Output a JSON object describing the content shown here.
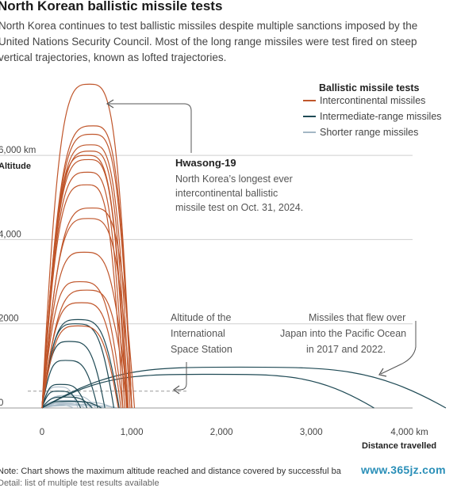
{
  "header": {
    "title": "North Korean ballistic missile tests",
    "subtitle_lines": [
      "North Korea continues to test ballistic missiles despite multiple sanctions imposed by the",
      "United Nations Security Council. Most of the long range missiles were test fired on steep",
      "vertical trajectories, known as lofted trajectories."
    ]
  },
  "chart_data": {
    "type": "line",
    "legend": {
      "title": "Ballistic missile tests",
      "placement": "top-right",
      "items": [
        {
          "label": "Intercontinental missiles",
          "color": "#c0562b"
        },
        {
          "label": "Intermediate-range missiles",
          "color": "#1f4a55"
        },
        {
          "label": "Shorter range missiles",
          "color": "#a3b7c5"
        }
      ]
    },
    "y_ticks": [
      "6,000 km",
      "4,000",
      "2000",
      "0"
    ],
    "y_label": "Altitude",
    "x_ticks": [
      "0",
      "1,000",
      "2,000",
      "3,000",
      "4,000 km"
    ],
    "x_label": "Distance travelled",
    "xlim": [
      0,
      4700
    ],
    "ylim": [
      0,
      7800
    ],
    "grid": true,
    "series": [
      {
        "kind": "icbm",
        "peak_x": 530,
        "range": 1000,
        "apogee": 7690
      },
      {
        "kind": "icbm",
        "peak_x": 570,
        "range": 1000,
        "apogee": 6700
      },
      {
        "kind": "icbm",
        "peak_x": 560,
        "range": 1000,
        "apogee": 6500
      },
      {
        "kind": "icbm",
        "peak_x": 545,
        "range": 980,
        "apogee": 6250
      },
      {
        "kind": "icbm",
        "peak_x": 540,
        "range": 960,
        "apogee": 6100
      },
      {
        "kind": "icbm",
        "peak_x": 500,
        "range": 950,
        "apogee": 6000
      },
      {
        "kind": "icbm",
        "peak_x": 520,
        "range": 940,
        "apogee": 5900
      },
      {
        "kind": "icbm",
        "peak_x": 510,
        "range": 920,
        "apogee": 5600
      },
      {
        "kind": "icbm",
        "peak_x": 500,
        "range": 900,
        "apogee": 5300
      },
      {
        "kind": "icbm",
        "peak_x": 560,
        "range": 1030,
        "apogee": 4750
      },
      {
        "kind": "icbm",
        "peak_x": 520,
        "range": 1000,
        "apogee": 4500
      },
      {
        "kind": "icbm",
        "peak_x": 470,
        "range": 960,
        "apogee": 3700
      },
      {
        "kind": "icbm",
        "peak_x": 420,
        "range": 900,
        "apogee": 3000
      },
      {
        "kind": "icbm",
        "peak_x": 500,
        "range": 950,
        "apogee": 2800
      },
      {
        "kind": "icbm",
        "peak_x": 440,
        "range": 880,
        "apogee": 2500
      },
      {
        "kind": "icbm",
        "peak_x": 400,
        "range": 850,
        "apogee": 1950
      },
      {
        "kind": "irbm",
        "peak_x": 400,
        "range": 860,
        "apogee": 2100
      },
      {
        "kind": "irbm",
        "peak_x": 370,
        "range": 800,
        "apogee": 2000
      },
      {
        "kind": "irbm",
        "peak_x": 300,
        "range": 700,
        "apogee": 1580
      },
      {
        "kind": "irbm",
        "peak_x": 260,
        "range": 620,
        "apogee": 1130
      },
      {
        "kind": "irbm",
        "peak_x": 200,
        "range": 500,
        "apogee": 560
      },
      {
        "kind": "irbm",
        "peak_x": 180,
        "range": 430,
        "apogee": 400
      },
      {
        "kind": "irbm",
        "peak_x": 250,
        "range": 560,
        "apogee": 260
      },
      {
        "kind": "irbm",
        "peak_x": 300,
        "range": 660,
        "apogee": 160
      },
      {
        "kind": "irbm",
        "peak_x": 2200,
        "range": 4500,
        "apogee": 970
      },
      {
        "kind": "irbm",
        "peak_x": 1900,
        "range": 3700,
        "apogee": 800
      },
      {
        "kind": "srbm",
        "peak_x": 180,
        "range": 400,
        "apogee": 500
      },
      {
        "kind": "srbm",
        "peak_x": 300,
        "range": 600,
        "apogee": 300
      },
      {
        "kind": "srbm",
        "peak_x": 260,
        "range": 550,
        "apogee": 180
      },
      {
        "kind": "srbm",
        "peak_x": 220,
        "range": 480,
        "apogee": 110
      },
      {
        "kind": "srbm",
        "peak_x": 350,
        "range": 700,
        "apogee": 90
      },
      {
        "kind": "srbm",
        "peak_x": 150,
        "range": 350,
        "apogee": 70
      },
      {
        "kind": "srbm",
        "peak_x": 400,
        "range": 800,
        "apogee": 140
      },
      {
        "kind": "srbm",
        "peak_x": 420,
        "range": 850,
        "apogee": 60
      }
    ],
    "iss_altitude": 400,
    "annotations": [
      {
        "id": "hwasong",
        "title": "Hwasong-19",
        "lines": [
          "North Korea’s longest ever",
          "intercontinental ballistic",
          "missile test on Oct. 31, 2024."
        ]
      },
      {
        "id": "iss",
        "lines": [
          "Altitude of the",
          "International",
          "Space Station"
        ]
      },
      {
        "id": "japan",
        "lines": [
          "Missiles that flew over",
          "Japan into the Pacific Ocean",
          "in 2017 and 2022."
        ]
      }
    ]
  },
  "footer": {
    "note": "Note: Chart shows the maximum altitude reached and distance covered by successful ba",
    "note2": "Detail: list of multiple test results available",
    "watermark": "www.365jz.com"
  }
}
